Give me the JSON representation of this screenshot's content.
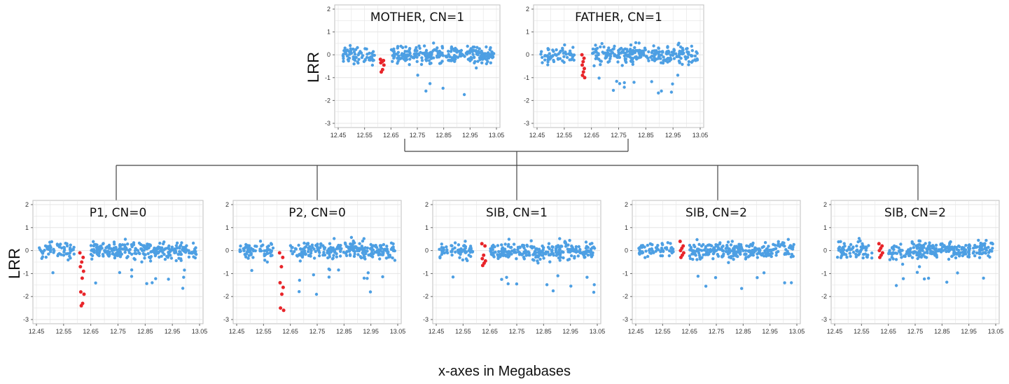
{
  "caption": "x-axes in Megabases",
  "colors": {
    "normal": "#4d9fe3",
    "deleted": "#e8252a",
    "grid": "#e4e4e4",
    "border": "#bfbfbf",
    "tree": "#444444"
  },
  "chart_data": [
    {
      "type": "scatter",
      "title": "MOTHER, CN=1",
      "ylabel": "LRR",
      "xlim": [
        12.45,
        13.05
      ],
      "ylim": [
        -3,
        2
      ],
      "x_ticks": [
        "12.45",
        "12.55",
        "12.65",
        "12.75",
        "12.85",
        "12.95",
        "13.05"
      ],
      "y_ticks": [
        "2",
        "1",
        "0",
        "-1",
        "-2",
        "-3"
      ],
      "deletion_region": [
        12.61,
        12.625
      ],
      "deletion_lrr": [
        -0.2,
        -0.25,
        -0.3,
        -0.35,
        -0.45,
        -0.65,
        -0.75
      ]
    },
    {
      "type": "scatter",
      "title": "FATHER, CN=1",
      "ylabel": "",
      "xlim": [
        12.45,
        13.05
      ],
      "ylim": [
        -3,
        2
      ],
      "x_ticks": [
        "12.45",
        "12.55",
        "12.65",
        "12.75",
        "12.85",
        "12.95",
        "13.05"
      ],
      "y_ticks": [
        "2",
        "1",
        "0",
        "-1",
        "-2",
        "-3"
      ],
      "deletion_region": [
        12.615,
        12.625
      ],
      "deletion_lrr": [
        0.0,
        -0.15,
        -0.3,
        -0.45,
        -0.6,
        -0.75,
        -0.9,
        -1.0
      ]
    },
    {
      "type": "scatter",
      "title": "P1, CN=0",
      "ylabel": "LRR",
      "xlim": [
        12.45,
        13.05
      ],
      "ylim": [
        -3,
        2
      ],
      "x_ticks": [
        "12.45",
        "12.55",
        "12.65",
        "12.75",
        "12.85",
        "12.95",
        "13.05"
      ],
      "y_ticks": [
        "2",
        "1",
        "0",
        "-1",
        "-2",
        "-3"
      ],
      "deletion_region": [
        12.61,
        12.625
      ],
      "deletion_lrr": [
        -0.1,
        -0.3,
        -0.5,
        -0.7,
        -0.9,
        -1.2,
        -1.8,
        -1.9,
        -2.3,
        -2.4
      ]
    },
    {
      "type": "scatter",
      "title": "P2, CN=0",
      "ylabel": "",
      "xlim": [
        12.45,
        13.05
      ],
      "ylim": [
        -3,
        2
      ],
      "x_ticks": [
        "12.45",
        "12.55",
        "12.65",
        "12.75",
        "12.85",
        "12.95",
        "13.05"
      ],
      "y_ticks": [
        "2",
        "1",
        "0",
        "-1",
        "-2",
        "-3"
      ],
      "deletion_region": [
        12.61,
        12.625
      ],
      "deletion_lrr": [
        -0.1,
        -0.3,
        -0.7,
        -1.4,
        -1.6,
        -1.9,
        -2.5,
        -2.6
      ]
    },
    {
      "type": "scatter",
      "title": "SIB, CN=1",
      "ylabel": "",
      "xlim": [
        12.45,
        13.05
      ],
      "ylim": [
        -3,
        2
      ],
      "x_ticks": [
        "12.45",
        "12.55",
        "12.65",
        "12.75",
        "12.85",
        "12.95",
        "13.05"
      ],
      "y_ticks": [
        "2",
        "1",
        "0",
        "-1",
        "-2",
        "-3"
      ],
      "deletion_region": [
        12.62,
        12.635
      ],
      "deletion_lrr": [
        0.3,
        0.2,
        -0.2,
        -0.35,
        -0.45,
        -0.55,
        -0.65
      ]
    },
    {
      "type": "scatter",
      "title": "SIB, CN=2",
      "ylabel": "",
      "xlim": [
        12.45,
        13.05
      ],
      "ylim": [
        -3,
        2
      ],
      "x_ticks": [
        "12.45",
        "12.55",
        "12.65",
        "12.75",
        "12.85",
        "12.95",
        "13.05"
      ],
      "y_ticks": [
        "2",
        "1",
        "0",
        "-1",
        "-2",
        "-3"
      ],
      "deletion_region": [
        12.615,
        12.63
      ],
      "deletion_lrr": [
        0.4,
        0.2,
        0.1,
        0.0,
        -0.1,
        -0.2,
        -0.3
      ]
    },
    {
      "type": "scatter",
      "title": "SIB, CN=2",
      "ylabel": "",
      "xlim": [
        12.45,
        13.05
      ],
      "ylim": [
        -3,
        2
      ],
      "x_ticks": [
        "12.45",
        "12.55",
        "12.65",
        "12.75",
        "12.85",
        "12.95",
        "13.05"
      ],
      "y_ticks": [
        "2",
        "1",
        "0",
        "-1",
        "-2",
        "-3"
      ],
      "deletion_region": [
        12.615,
        12.63
      ],
      "deletion_lrr": [
        0.3,
        0.2,
        0.1,
        0.0,
        -0.1,
        -0.2,
        -0.3
      ]
    }
  ]
}
